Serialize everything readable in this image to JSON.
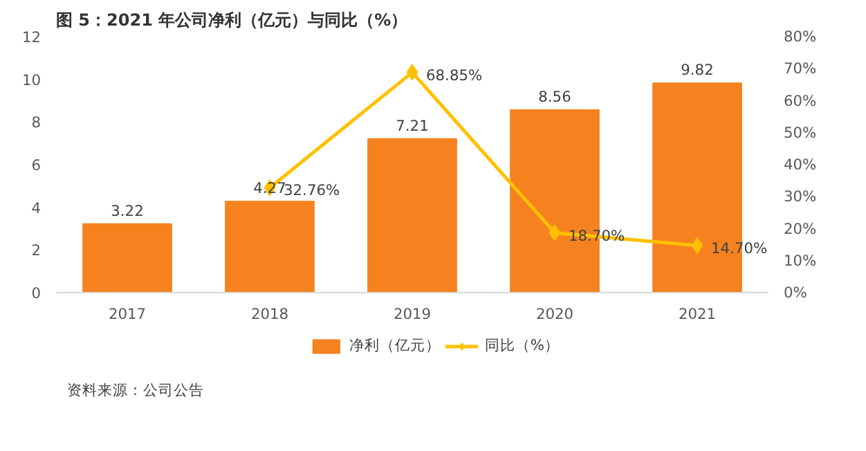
{
  "chart_data": {
    "type": "bar",
    "title": "图 5：2021 年公司净利（亿元）与同比（%）",
    "annotations": [
      "资料来源：公司公告"
    ],
    "categories": [
      "2017",
      "2018",
      "2019",
      "2020",
      "2021"
    ],
    "series": [
      {
        "name": "净利（亿元）",
        "color": "#f5821f",
        "values": [
          3.22,
          4.27,
          7.21,
          8.56,
          9.82
        ],
        "value_labels": [
          "3.22",
          "4.27",
          "7.21",
          "8.56",
          "9.82"
        ]
      },
      {
        "name": "同比（%）",
        "type": "line",
        "axis": "y2",
        "color": "#ffc000",
        "marker": "diamond",
        "values": [
          null,
          32.76,
          68.85,
          18.7,
          14.7
        ],
        "value_labels": [
          null,
          "32.76%",
          "68.85%",
          "18.70%",
          "14.70%"
        ]
      }
    ],
    "ylim": [
      0,
      12
    ],
    "yticks": [
      0,
      2,
      4,
      6,
      8,
      10,
      12
    ],
    "y2lim": [
      0,
      80
    ],
    "y2ticks": [
      {
        "value": 0,
        "label": "0%"
      },
      {
        "value": 10,
        "label": "10%"
      },
      {
        "value": 20,
        "label": "20%"
      },
      {
        "value": 30,
        "label": "30%"
      },
      {
        "value": 40,
        "label": "40%"
      },
      {
        "value": 50,
        "label": "50%"
      },
      {
        "value": 60,
        "label": "60%"
      },
      {
        "value": 70,
        "label": "70%"
      },
      {
        "value": 80,
        "label": "80%"
      }
    ],
    "grid": false,
    "legend": "bottom"
  }
}
